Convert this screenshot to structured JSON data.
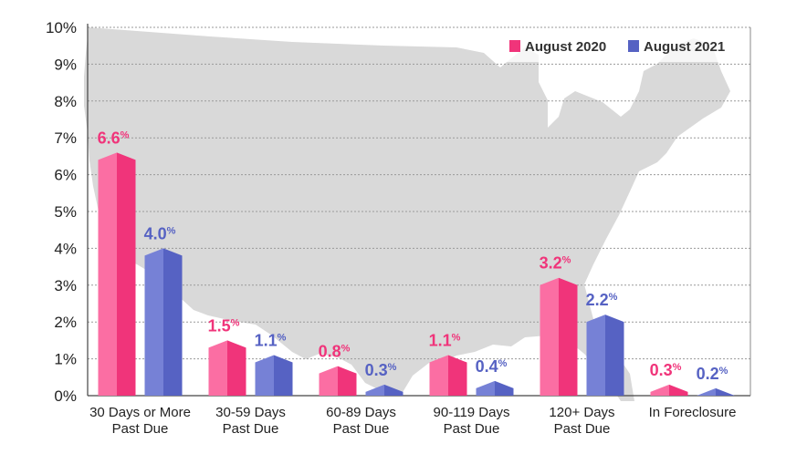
{
  "chart_data": {
    "type": "bar",
    "title": "",
    "xlabel": "",
    "ylabel": "",
    "ylim": [
      0,
      10
    ],
    "y_ticks": [
      "0%",
      "1%",
      "2%",
      "3%",
      "4%",
      "5%",
      "6%",
      "7%",
      "8%",
      "9%",
      "10%"
    ],
    "grid": true,
    "legend_position": "top-right",
    "categories": [
      [
        "30 Days or More",
        "Past Due"
      ],
      [
        "30-59 Days",
        "Past Due"
      ],
      [
        "60-89 Days",
        "Past Due"
      ],
      [
        "90-119 Days",
        "Past Due"
      ],
      [
        "120+ Days",
        "Past Due"
      ],
      [
        "In Foreclosure"
      ]
    ],
    "series": [
      {
        "name": "August 2020",
        "color": "#f0347a",
        "light": "#fb6ea3",
        "values": [
          6.6,
          1.5,
          0.8,
          1.1,
          3.2,
          0.3
        ],
        "labels": [
          "6.6",
          "1.5",
          "0.8",
          "1.1",
          "3.2",
          "0.3"
        ]
      },
      {
        "name": "August 2021",
        "color": "#5662c3",
        "light": "#7681d6",
        "values": [
          4.0,
          1.1,
          0.3,
          0.4,
          2.2,
          0.2
        ],
        "labels": [
          "4.0",
          "1.1",
          "0.3",
          "0.4",
          "2.2",
          "0.2"
        ]
      }
    ],
    "value_suffix": "%",
    "background": "map-of-united-states"
  }
}
